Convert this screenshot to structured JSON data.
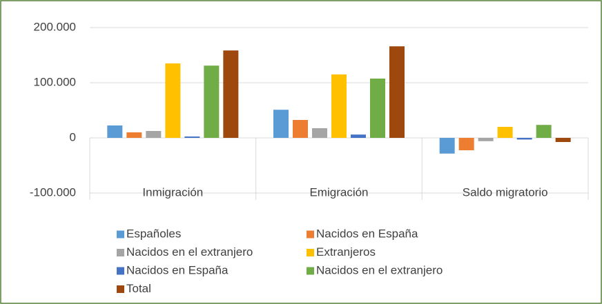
{
  "chart_data": {
    "type": "bar",
    "categories": [
      "Inmigración",
      "Emigración",
      "Saldo migratorio"
    ],
    "series": [
      {
        "name": "Españoles",
        "color": "#5b9bd5",
        "values": [
          22500,
          51000,
          -28500
        ]
      },
      {
        "name": "Nacidos en España",
        "color": "#ed7d31",
        "values": [
          10000,
          32500,
          -22500
        ]
      },
      {
        "name": "Nacidos en el extranjero",
        "color": "#a5a5a5",
        "values": [
          12500,
          17500,
          -6000
        ]
      },
      {
        "name": "Extranjeros",
        "color": "#ffc000",
        "values": [
          135000,
          115000,
          20000
        ]
      },
      {
        "name": "Nacidos en España",
        "color": "#4472c4",
        "values": [
          2500,
          6000,
          -3000
        ]
      },
      {
        "name": "Nacidos en el extranjero",
        "color": "#70ad47",
        "values": [
          131000,
          107500,
          23500
        ]
      },
      {
        "name": "Total",
        "color": "#9e480e",
        "values": [
          158500,
          166000,
          -7500
        ]
      }
    ],
    "ylim": [
      -100000,
      200000
    ],
    "yticks": [
      {
        "value": -100000,
        "label": "-100.000"
      },
      0,
      {
        "value": 100000,
        "label": "100.000"
      },
      {
        "value": 200000,
        "label": "200.000"
      }
    ],
    "grid": true,
    "legend": "bottom"
  }
}
